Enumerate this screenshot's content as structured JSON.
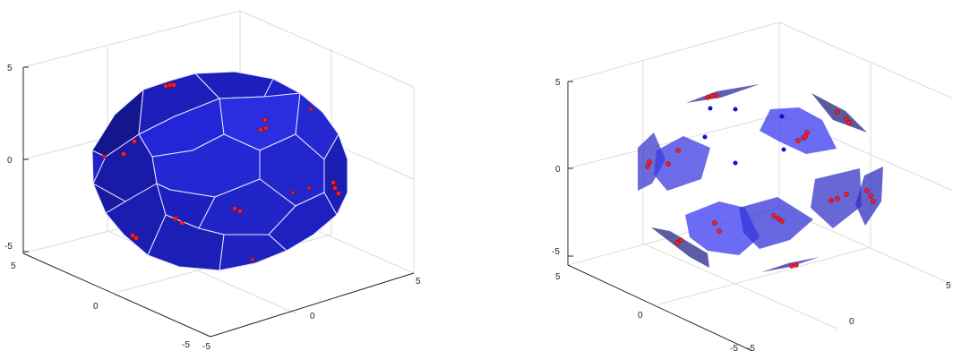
{
  "figure": {
    "left_panel": {
      "z_ticks": [
        "5",
        "0",
        "-5"
      ],
      "x_ticks": [
        "5",
        "0",
        "-5"
      ],
      "y_ticks": [
        "-5",
        "0",
        "5"
      ],
      "face_color": "#1f22c9",
      "edge_color": "#ffffff",
      "point_color": "#ff1a1a"
    },
    "right_panel": {
      "z_ticks": [
        "5",
        "0",
        "-5"
      ],
      "x_ticks": [
        "5",
        "0",
        "-5"
      ],
      "y_ticks": [
        "-5",
        "0",
        "5"
      ],
      "face_color": "#3a3ae6",
      "point_color": "#ff1a1a",
      "center_color": "#1010d0"
    }
  }
}
